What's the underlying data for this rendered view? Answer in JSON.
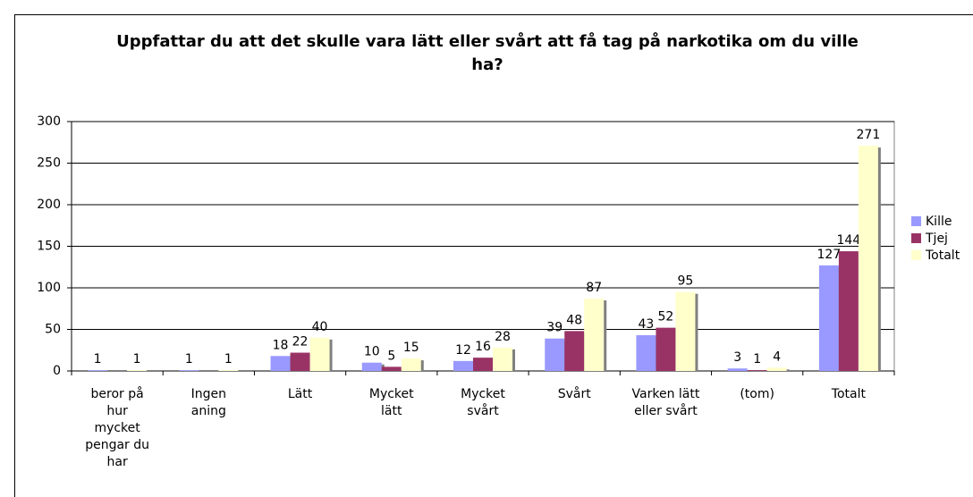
{
  "chart_data": {
    "type": "bar",
    "title": "Uppfattar du att det skulle vara lätt eller svårt att få tag på narkotika om du ville ha?",
    "categories": [
      "beror på hur mycket pengar du har",
      "Ingen aning",
      "Lätt",
      "Mycket lätt",
      "Mycket svårt",
      "Svårt",
      "Varken lätt eller svårt",
      "(tom)",
      "Totalt"
    ],
    "series": [
      {
        "name": "Kille",
        "color": "#9999ff",
        "values": [
          1,
          1,
          18,
          10,
          12,
          39,
          43,
          3,
          127
        ]
      },
      {
        "name": "Tjej",
        "color": "#993366",
        "values": [
          null,
          null,
          22,
          5,
          16,
          48,
          52,
          1,
          144
        ]
      },
      {
        "name": "Totalt",
        "color": "#ffffcc",
        "values": [
          1,
          1,
          40,
          15,
          28,
          87,
          95,
          4,
          271
        ]
      }
    ],
    "ylim": [
      0,
      300
    ],
    "yticks": [
      0,
      50,
      100,
      150,
      200,
      250,
      300
    ],
    "grid": true,
    "legend": "right"
  }
}
